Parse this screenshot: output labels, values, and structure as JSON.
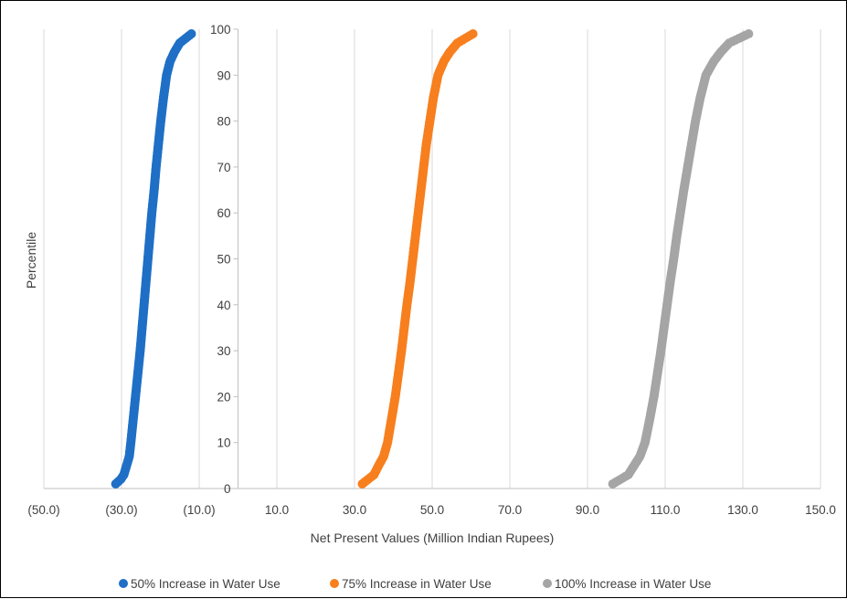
{
  "chart_data": {
    "type": "scatter",
    "title": "",
    "xlabel": "Net Present Values (Million Indian Rupees)",
    "ylabel": "Percentile",
    "xlim": [
      -50,
      150
    ],
    "ylim": [
      0,
      100
    ],
    "x_ticks": [
      {
        "value": -50,
        "label": "(50.0)"
      },
      {
        "value": -30,
        "label": "(30.0)"
      },
      {
        "value": -10,
        "label": "(10.0)"
      },
      {
        "value": 10,
        "label": "10.0"
      },
      {
        "value": 30,
        "label": "30.0"
      },
      {
        "value": 50,
        "label": "50.0"
      },
      {
        "value": 70,
        "label": "70.0"
      },
      {
        "value": 90,
        "label": "90.0"
      },
      {
        "value": 110,
        "label": "110.0"
      },
      {
        "value": 130,
        "label": "130.0"
      },
      {
        "value": 150,
        "label": "150.0"
      }
    ],
    "y_ticks": [
      0,
      10,
      20,
      30,
      40,
      50,
      60,
      70,
      80,
      90,
      100
    ],
    "y_axis_crosses_x_at": 0,
    "grid": {
      "vertical": true,
      "horizontal": false
    },
    "legend_position": "bottom",
    "series": [
      {
        "name": "50% Increase in Water Use",
        "color": "#1F6FC6",
        "points": [
          [
            -31.5,
            1
          ],
          [
            -30.2,
            2
          ],
          [
            -29.4,
            3
          ],
          [
            -28.7,
            5
          ],
          [
            -28.0,
            7
          ],
          [
            -27.6,
            10
          ],
          [
            -27.0,
            15
          ],
          [
            -26.4,
            20
          ],
          [
            -25.8,
            25
          ],
          [
            -25.2,
            30
          ],
          [
            -24.7,
            35
          ],
          [
            -24.2,
            40
          ],
          [
            -23.7,
            45
          ],
          [
            -23.2,
            50
          ],
          [
            -22.7,
            55
          ],
          [
            -22.2,
            60
          ],
          [
            -21.6,
            65
          ],
          [
            -21.1,
            70
          ],
          [
            -20.5,
            75
          ],
          [
            -19.9,
            80
          ],
          [
            -19.2,
            85
          ],
          [
            -18.4,
            90
          ],
          [
            -17.5,
            93
          ],
          [
            -16.4,
            95
          ],
          [
            -15.0,
            97
          ],
          [
            -13.5,
            98
          ],
          [
            -12.0,
            99
          ]
        ]
      },
      {
        "name": "75% Increase in Water Use",
        "color": "#F77F1E",
        "points": [
          [
            32.0,
            1
          ],
          [
            33.5,
            2
          ],
          [
            35.0,
            3
          ],
          [
            36.2,
            5
          ],
          [
            37.5,
            7
          ],
          [
            38.5,
            10
          ],
          [
            39.5,
            15
          ],
          [
            40.5,
            20
          ],
          [
            41.3,
            25
          ],
          [
            42.1,
            30
          ],
          [
            42.8,
            35
          ],
          [
            43.5,
            40
          ],
          [
            44.3,
            45
          ],
          [
            45.0,
            50
          ],
          [
            45.7,
            55
          ],
          [
            46.4,
            60
          ],
          [
            47.1,
            65
          ],
          [
            47.8,
            70
          ],
          [
            48.5,
            75
          ],
          [
            49.4,
            80
          ],
          [
            50.3,
            85
          ],
          [
            51.5,
            90
          ],
          [
            53.0,
            93
          ],
          [
            54.5,
            95
          ],
          [
            56.5,
            97
          ],
          [
            58.5,
            98
          ],
          [
            60.5,
            99
          ]
        ]
      },
      {
        "name": "100% Increase in Water Use",
        "color": "#A5A5A5",
        "points": [
          [
            96.5,
            1
          ],
          [
            98.5,
            2
          ],
          [
            100.5,
            3
          ],
          [
            102.0,
            5
          ],
          [
            103.5,
            7
          ],
          [
            104.8,
            10
          ],
          [
            106.0,
            15
          ],
          [
            107.1,
            20
          ],
          [
            108.0,
            25
          ],
          [
            108.9,
            30
          ],
          [
            109.7,
            35
          ],
          [
            110.5,
            40
          ],
          [
            111.3,
            45
          ],
          [
            112.2,
            50
          ],
          [
            113.0,
            55
          ],
          [
            113.9,
            60
          ],
          [
            114.8,
            65
          ],
          [
            115.8,
            70
          ],
          [
            116.8,
            75
          ],
          [
            117.8,
            80
          ],
          [
            119.0,
            85
          ],
          [
            120.5,
            90
          ],
          [
            122.5,
            93
          ],
          [
            124.3,
            95
          ],
          [
            126.5,
            97
          ],
          [
            129.0,
            98
          ],
          [
            131.5,
            99
          ]
        ]
      }
    ]
  }
}
